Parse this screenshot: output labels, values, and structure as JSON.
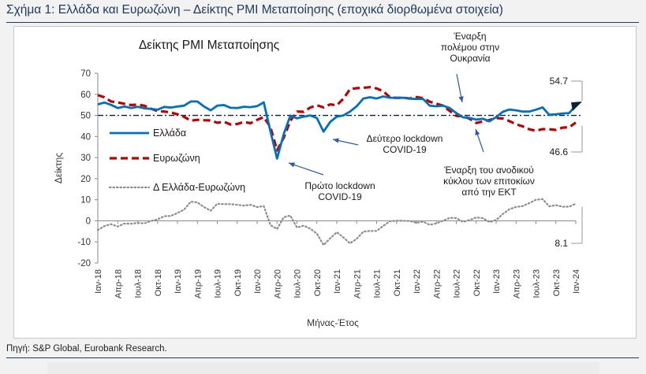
{
  "figure_title": "Σχήμα 1: Ελλάδα και Ευρωζώνη – Δείκτης PMI Μεταποίησης (εποχικά διορθωμένα στοιχεία)",
  "source": "Πηγή: S&P Global, Eurobank Research.",
  "colors": {
    "title": "#1f3a60",
    "greece": "#0070c0",
    "eurozone": "#c00000",
    "diff": "#8c8c8c",
    "annotation_arrow": "#2e5aa8",
    "reference_line": "#0b1f3f"
  },
  "chart_data": {
    "type": "line",
    "title": "Δείκτης PMI Μεταποίησης",
    "xlabel": "Μήνας-Έτος",
    "ylabel": "Δείκτης",
    "ylim": [
      -20,
      70
    ],
    "yticks": [
      -20,
      -10,
      0,
      10,
      20,
      30,
      40,
      50,
      60,
      70
    ],
    "reference_line": 50,
    "x": [
      "Ιαν-18",
      "Φεβ-18",
      "Μαρ-18",
      "Απρ-18",
      "Μαϊ-18",
      "Ιουν-18",
      "Ιουλ-18",
      "Αυγ-18",
      "Σεπ-18",
      "Οκτ-18",
      "Νοε-18",
      "Δεκ-18",
      "Ιαν-19",
      "Φεβ-19",
      "Μαρ-19",
      "Απρ-19",
      "Μαϊ-19",
      "Ιουν-19",
      "Ιουλ-19",
      "Αυγ-19",
      "Σεπ-19",
      "Οκτ-19",
      "Νοε-19",
      "Δεκ-19",
      "Ιαν-20",
      "Φεβ-20",
      "Μαρ-20",
      "Απρ-20",
      "Μαϊ-20",
      "Ιουν-20",
      "Ιουλ-20",
      "Αυγ-20",
      "Σεπ-20",
      "Οκτ-20",
      "Νοε-20",
      "Δεκ-20",
      "Ιαν-21",
      "Φεβ-21",
      "Μαρ-21",
      "Απρ-21",
      "Μαϊ-21",
      "Ιουν-21",
      "Ιουλ-21",
      "Αυγ-21",
      "Σεπ-21",
      "Οκτ-21",
      "Νοε-21",
      "Δεκ-21",
      "Ιαν-22",
      "Φεβ-22",
      "Μαρ-22",
      "Απρ-22",
      "Μαϊ-22",
      "Ιουν-22",
      "Ιουλ-22",
      "Αυγ-22",
      "Σεπ-22",
      "Οκτ-22",
      "Νοε-22",
      "Δεκ-22",
      "Ιαν-23",
      "Φεβ-23",
      "Μαρ-23",
      "Απρ-23",
      "Μαϊ-23",
      "Ιουν-23",
      "Ιουλ-23",
      "Αυγ-23",
      "Σεπ-23",
      "Οκτ-23",
      "Νοε-23",
      "Δεκ-23",
      "Ιαν-24"
    ],
    "xtick_labels": [
      "Ιαν-18",
      "Απρ-18",
      "Ιουλ-18",
      "Οκτ-18",
      "Ιαν-19",
      "Απρ-19",
      "Ιουλ-19",
      "Οκτ-19",
      "Ιαν-20",
      "Απρ-20",
      "Ιουλ-20",
      "Οκτ-20",
      "Ιαν-21",
      "Απρ-21",
      "Ιουλ-21",
      "Οκτ-21",
      "Ιαν-22",
      "Απρ-22",
      "Ιουλ-22",
      "Οκτ-22",
      "Ιαν-23",
      "Απρ-23",
      "Ιουλ-23",
      "Οκτ-23",
      "Ιαν-24"
    ],
    "series": [
      {
        "name": "Ελλάδα",
        "style": "solid",
        "values": [
          55.2,
          56.1,
          55.0,
          53.5,
          54.2,
          53.5,
          54.1,
          53.4,
          53.1,
          52.7,
          54.0,
          53.7,
          54.2,
          54.6,
          56.6,
          56.6,
          54.2,
          52.4,
          54.6,
          54.9,
          53.6,
          53.5,
          54.1,
          53.9,
          54.4,
          56.2,
          42.5,
          29.5,
          41.1,
          49.9,
          48.6,
          49.4,
          50.0,
          48.7,
          42.3,
          46.9,
          49.4,
          50.0,
          51.8,
          54.4,
          58.0,
          58.6,
          58.0,
          59.0,
          58.4,
          58.3,
          58.4,
          57.9,
          57.8,
          57.8,
          54.6,
          54.3,
          54.6,
          53.5,
          51.1,
          49.1,
          48.8,
          48.0,
          48.4,
          47.2,
          49.2,
          51.7,
          52.8,
          52.4,
          51.8,
          51.8,
          52.7,
          53.8,
          50.3,
          50.5,
          50.9,
          51.1,
          54.7
        ]
      },
      {
        "name": "Ευρωζώνη",
        "style": "dashed",
        "values": [
          59.6,
          58.6,
          56.6,
          56.2,
          55.5,
          54.9,
          55.1,
          54.6,
          53.2,
          52.0,
          51.8,
          51.4,
          50.5,
          49.3,
          47.5,
          47.9,
          47.7,
          47.6,
          46.5,
          47.0,
          45.7,
          45.9,
          46.9,
          46.3,
          47.9,
          49.2,
          44.5,
          33.4,
          39.4,
          47.4,
          51.8,
          51.7,
          53.7,
          54.8,
          53.8,
          55.2,
          54.8,
          57.9,
          62.5,
          62.9,
          63.1,
          63.4,
          62.8,
          61.4,
          58.6,
          58.3,
          58.4,
          58.0,
          58.7,
          58.2,
          56.5,
          55.5,
          54.6,
          52.1,
          49.8,
          49.6,
          48.4,
          46.4,
          47.1,
          47.8,
          48.8,
          48.5,
          47.3,
          45.8,
          44.8,
          43.4,
          42.7,
          43.5,
          43.4,
          43.1,
          44.2,
          44.4,
          46.6
        ]
      },
      {
        "name": "Δ Ελλάδα-Ευρωζώνη",
        "style": "dotted",
        "values": [
          -4.4,
          -2.5,
          -1.6,
          -2.7,
          -1.3,
          -1.4,
          -1.0,
          -1.2,
          -0.1,
          0.7,
          2.2,
          2.3,
          3.7,
          5.3,
          9.1,
          8.7,
          6.5,
          4.8,
          8.1,
          7.9,
          7.9,
          7.6,
          7.2,
          7.6,
          6.5,
          7.0,
          -2.0,
          -3.9,
          1.7,
          2.5,
          -3.2,
          -2.3,
          -3.7,
          -6.1,
          -11.5,
          -8.3,
          -5.4,
          -7.9,
          -10.7,
          -8.5,
          -5.1,
          -4.8,
          -4.8,
          -2.4,
          -0.2,
          0.0,
          0.0,
          -0.1,
          -0.9,
          -0.4,
          -1.9,
          -1.2,
          0.0,
          1.4,
          1.3,
          -0.5,
          0.4,
          1.6,
          1.3,
          -0.6,
          0.4,
          3.2,
          5.5,
          6.6,
          7.0,
          8.4,
          10.0,
          10.3,
          6.9,
          7.4,
          6.7,
          6.7,
          8.1
        ]
      }
    ],
    "legend": [
      "Ελλάδα",
      "Ευρωζώνη",
      "Δ Ελλάδα-Ευρωζώνη"
    ],
    "legend_position": "left",
    "end_labels": {
      "greece": "54.7",
      "eurozone": "46.6",
      "diff": "8.1"
    },
    "annotations": [
      {
        "text": [
          "Έναρξη",
          "πολέμου στην",
          "Ουκρανία"
        ]
      },
      {
        "text": [
          "Δεύτερο lockdown",
          "COVID-19"
        ]
      },
      {
        "text": [
          "Πρώτο lockdown",
          "COVID-19"
        ]
      },
      {
        "text": [
          "Έναρξη του ανοδικού",
          "κύκλου των επιτοκίων",
          "από την ΕΚΤ"
        ]
      }
    ]
  }
}
